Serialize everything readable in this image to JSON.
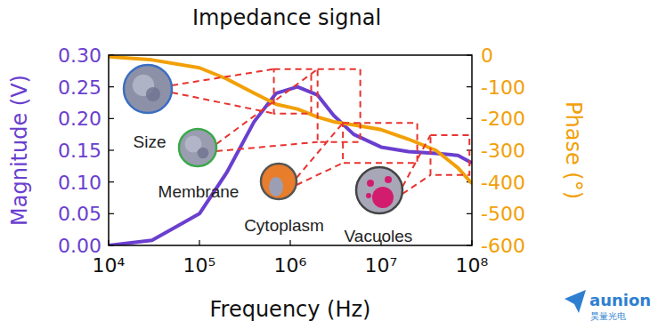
{
  "chart_data": {
    "type": "line",
    "title": "Impedance signal",
    "x_label": "Frequency (Hz)",
    "y_label": "Magnitude (V)",
    "y2_label": "Phase (°)",
    "log": "x",
    "x": [
      10000,
      30000,
      100000,
      200000,
      400000,
      700000,
      1200000,
      2000000,
      3000000,
      5000000,
      10000000,
      20000000,
      40000000,
      70000000,
      100000000
    ],
    "series": [
      {
        "color": "#6a3fcf",
        "values": [
          0.0,
          0.008,
          0.05,
          0.115,
          0.195,
          0.24,
          0.25,
          0.237,
          0.205,
          0.175,
          0.155,
          0.148,
          0.145,
          0.142,
          0.13
        ]
      },
      {
        "color": "#f2a007",
        "axis": "y2",
        "values": [
          -5,
          -15,
          -40,
          -75,
          -120,
          -155,
          -170,
          -195,
          -210,
          -220,
          -235,
          -265,
          -300,
          -355,
          -405
        ]
      }
    ],
    "xlim": [
      10000,
      100000000
    ],
    "xticks": [
      {
        "value": 10000,
        "label": "10⁴"
      },
      {
        "value": 100000,
        "label": "10⁵"
      },
      {
        "value": 1000000,
        "label": "10⁶"
      },
      {
        "value": 10000000,
        "label": "10⁷"
      },
      {
        "value": 100000000,
        "label": "10⁸"
      }
    ],
    "ylim": [
      0,
      0.3
    ],
    "yticks": [
      {
        "value": 0,
        "label": "0.00"
      },
      0.05,
      {
        "value": 0.1,
        "label": "0.10"
      },
      0.15,
      {
        "value": 0.2,
        "label": "0.20"
      },
      0.25,
      {
        "value": 0.3,
        "label": "0.30"
      }
    ],
    "y2lim": [
      -600,
      0
    ],
    "y2ticks": [
      0,
      -100,
      -200,
      -300,
      -400,
      -500,
      -600
    ],
    "annotations": [
      {
        "text": "Size",
        "x": [
          660000,
          1700000
        ],
        "y": [
          0.208,
          0.278
        ]
      },
      {
        "text": "Membrane",
        "x": [
          2000000,
          5900000
        ],
        "y": [
          0.163,
          0.278
        ]
      },
      {
        "text": "Cytoplasm",
        "x": [
          3800000,
          25000000
        ],
        "y": [
          0.13,
          0.193
        ]
      },
      {
        "text": "Vacuoles",
        "x": [
          35000000,
          94000000
        ],
        "y": [
          0.111,
          0.174
        ]
      }
    ],
    "logo": {
      "text": "aunion",
      "subtitle": "昊量光电"
    }
  }
}
